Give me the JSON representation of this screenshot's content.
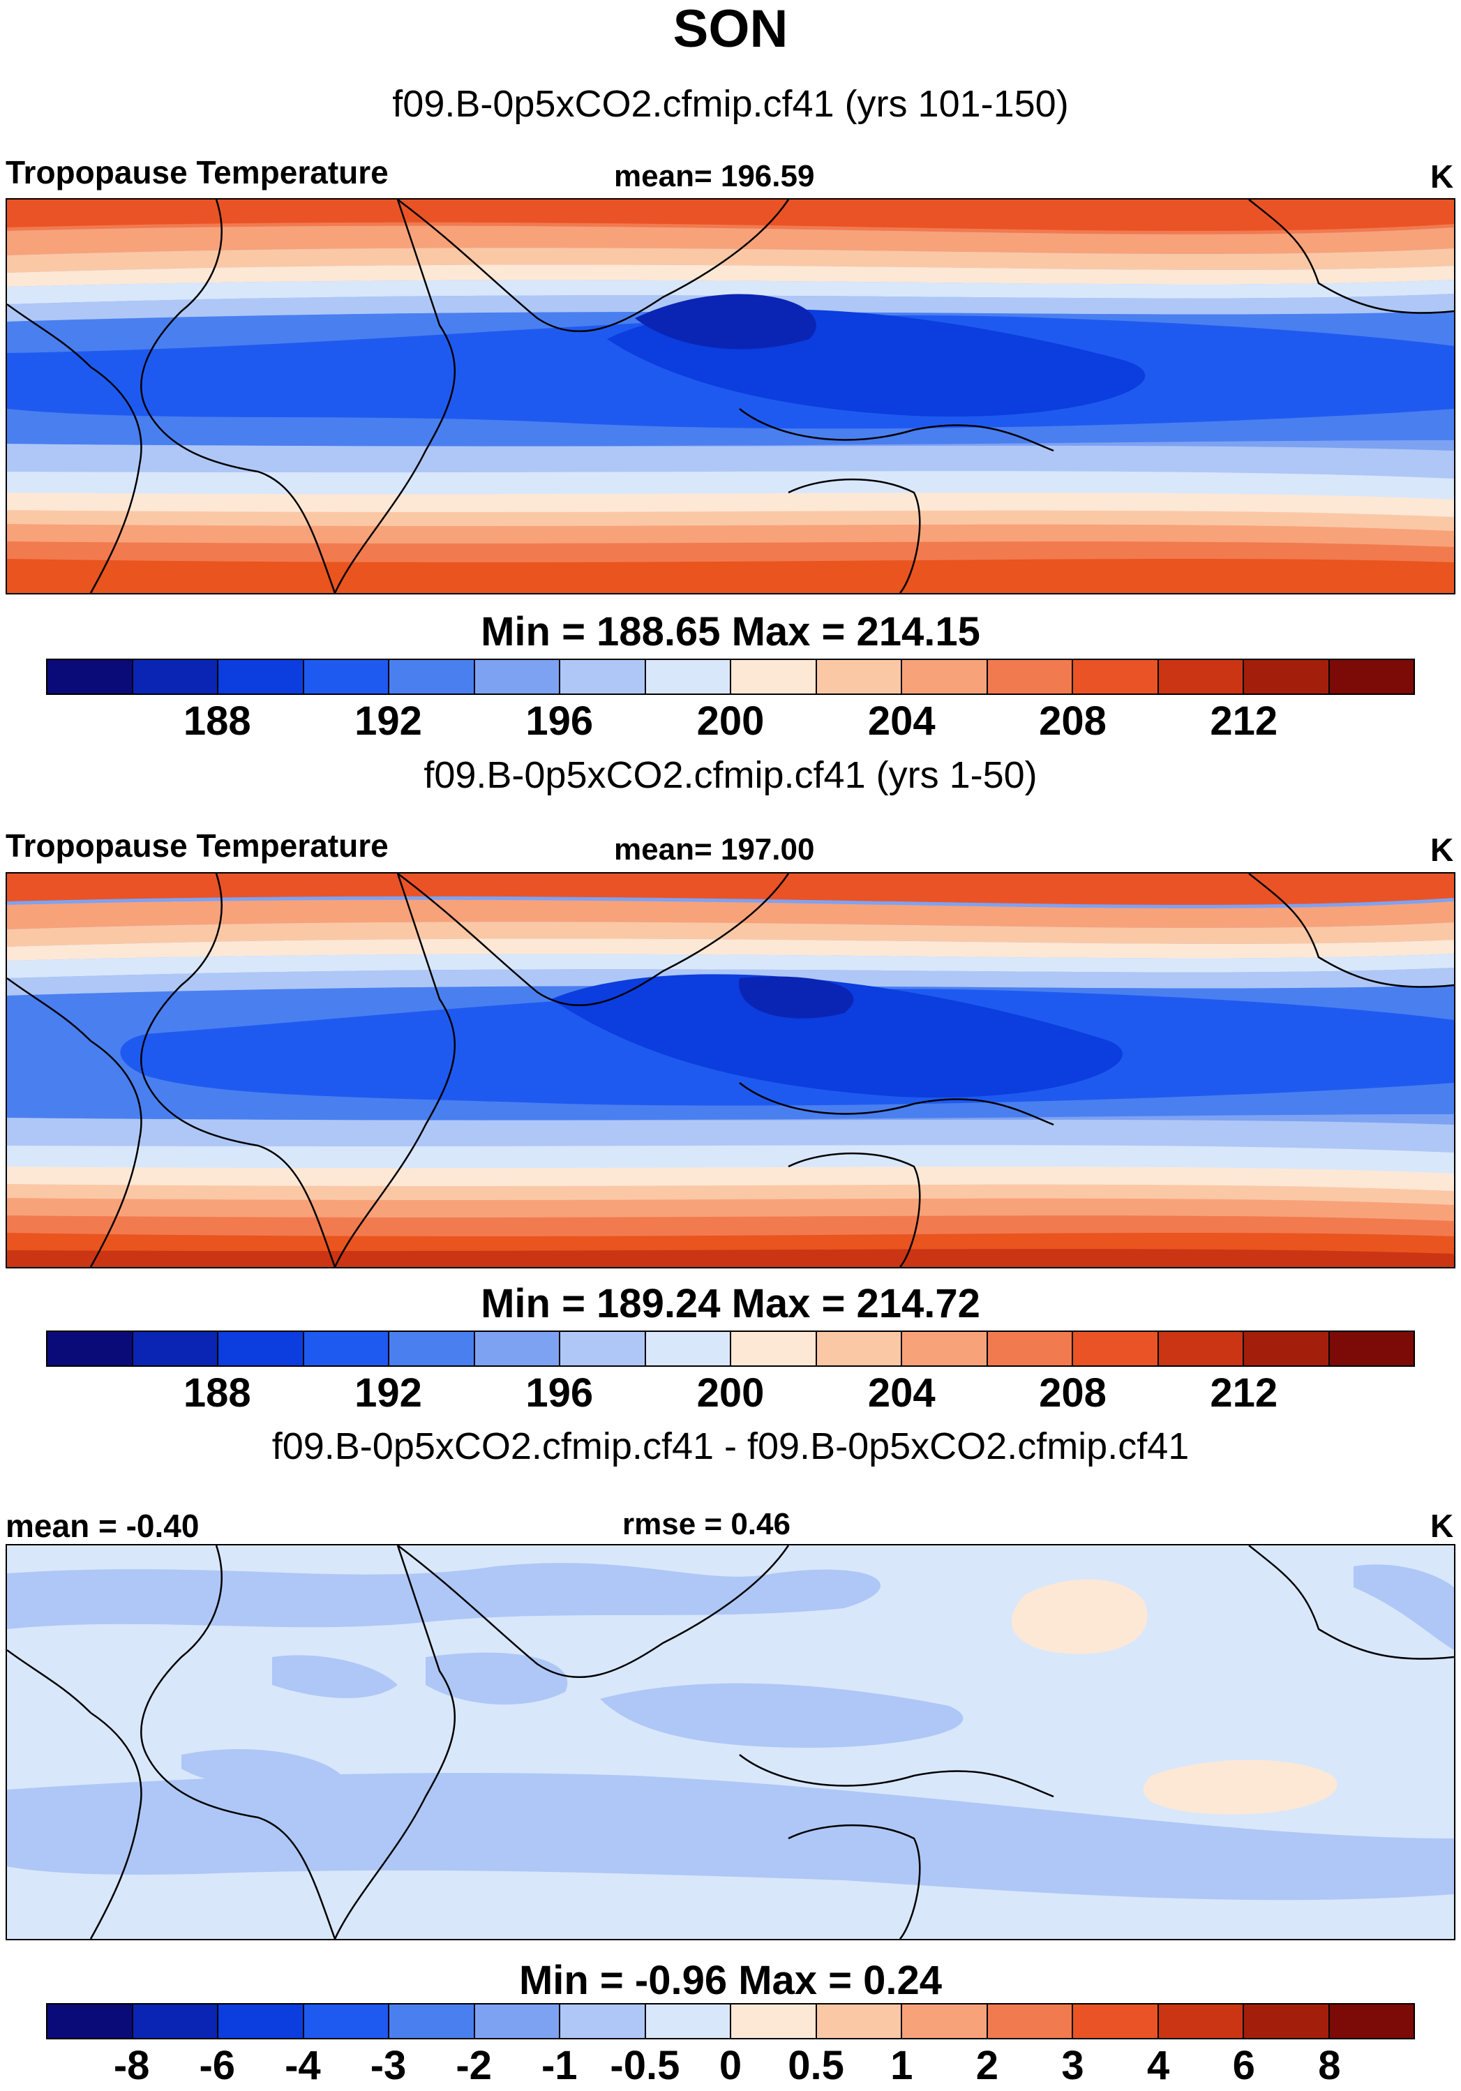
{
  "figure": {
    "season_title": "SON",
    "units": "K"
  },
  "panels": [
    {
      "id": "panel1",
      "subtitle": "f09.B-0p5xCO2.cfmip.cf41 (yrs 101-150)",
      "left_label": "Tropopause Temperature",
      "center_label": "mean= 196.59",
      "right_label": "K",
      "minmax_label": "Min = 188.65 Max = 214.15",
      "min": 188.65,
      "max": 214.15,
      "mean": 196.59
    },
    {
      "id": "panel2",
      "subtitle": "f09.B-0p5xCO2.cfmip.cf41 (yrs 1-50)",
      "left_label": "Tropopause Temperature",
      "center_label": "mean= 197.00",
      "right_label": "K",
      "minmax_label": "Min = 189.24 Max = 214.72",
      "min": 189.24,
      "max": 214.72,
      "mean": 197.0
    },
    {
      "id": "panel3",
      "subtitle": "f09.B-0p5xCO2.cfmip.cf41 - f09.B-0p5xCO2.cfmip.cf41",
      "left_label": "mean =  -0.40",
      "center_label": "rmse =   0.46",
      "right_label": "K",
      "minmax_label": "Min =  -0.96 Max =   0.24",
      "min": -0.96,
      "max": 0.24,
      "mean": -0.4,
      "rmse": 0.46
    }
  ],
  "colorbars": {
    "absolute": {
      "colors": [
        "#0a0a78",
        "#0a25b4",
        "#0b3ddf",
        "#1f5af0",
        "#4a7ff0",
        "#7ea2f2",
        "#aec7f6",
        "#d9e7fb",
        "#fde8d6",
        "#fbc8a6",
        "#f8a27a",
        "#f27a4f",
        "#ea5326",
        "#cb3514",
        "#a41e0c",
        "#7c0a06"
      ],
      "tick_labels": [
        "188",
        "192",
        "196",
        "200",
        "204",
        "208",
        "212"
      ],
      "tick_positions": [
        2,
        4,
        6,
        8,
        10,
        12,
        14
      ]
    },
    "difference": {
      "colors": [
        "#0a0a78",
        "#0a25b4",
        "#0b3ddf",
        "#1f5af0",
        "#4a7ff0",
        "#7ea2f2",
        "#aec7f6",
        "#d9e7fb",
        "#fde8d6",
        "#fbc8a6",
        "#f8a27a",
        "#f27a4f",
        "#ea5326",
        "#cb3514",
        "#a41e0c",
        "#7c0a06"
      ],
      "tick_labels": [
        "-8",
        "-6",
        "-4",
        "-3",
        "-2",
        "-1",
        "-0.5",
        "0",
        "0.5",
        "1",
        "2",
        "3",
        "4",
        "6",
        "8"
      ],
      "tick_positions": [
        1,
        2,
        3,
        4,
        5,
        6,
        7,
        8,
        9,
        10,
        11,
        12,
        13,
        14,
        15
      ]
    }
  }
}
